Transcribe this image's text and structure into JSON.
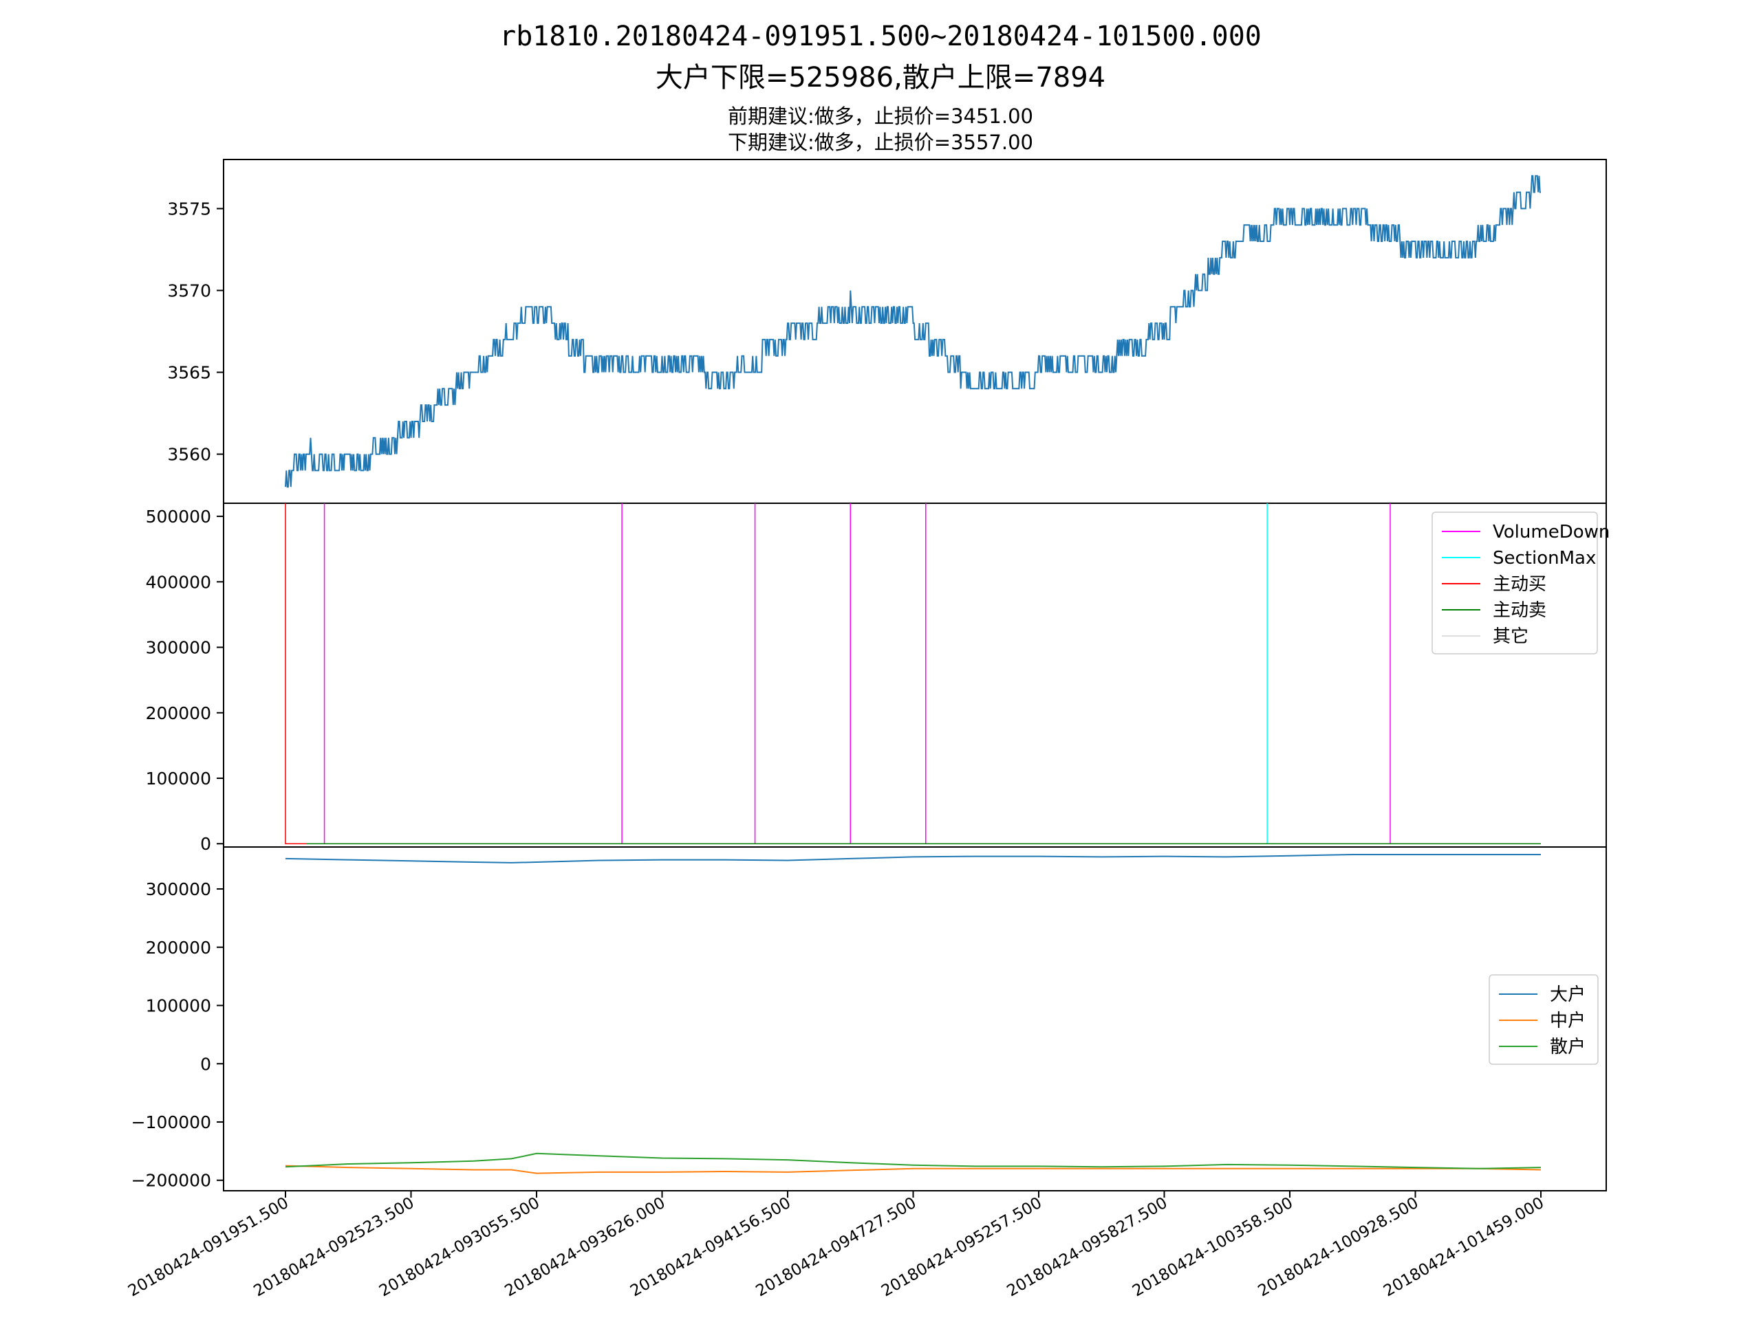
{
  "figure": {
    "title_line1": "rb1810.20180424-091951.500~20180424-101500.000",
    "title_line2": "大户下限=525986,散户上限=7894",
    "subtitle_line1": "前期建议:做多，止损价=3451.00",
    "subtitle_line2": "下期建议:做多，止损价=3557.00"
  },
  "x_ticks": [
    "20180424-091951.500",
    "20180424-092523.500",
    "20180424-093055.500",
    "20180424-093626.000",
    "20180424-094156.500",
    "20180424-094727.500",
    "20180424-095257.500",
    "20180424-095827.500",
    "20180424-100358.500",
    "20180424-100928.500",
    "20180424-101459.000"
  ],
  "chart_data": [
    {
      "type": "line",
      "panel": "price",
      "ylim": [
        3557,
        3578
      ],
      "yticks": [
        3560,
        3565,
        3570,
        3575
      ],
      "color": "#1f77b4",
      "x_index": [
        0,
        0.2,
        0.5,
        1,
        1.5,
        2,
        2.5,
        3,
        3.5,
        4,
        4.5,
        5,
        5.5,
        6,
        6.5,
        7,
        7.5,
        8,
        8.5,
        9,
        9.5,
        10
      ],
      "series": [
        {
          "values_low": [
            3557,
            3559,
            3558,
            3560,
            3563,
            3565,
            3562,
            3564,
            3563,
            3566,
            3567,
            3566,
            3562,
            3564,
            3564,
            3566,
            3570,
            3572,
            3572,
            3571,
            3571,
            3574
          ],
          "values_high": [
            3559,
            3560,
            3559,
            3562,
            3566,
            3572,
            3567,
            3567,
            3565,
            3567,
            3570,
            3569,
            3565,
            3565,
            3566,
            3568,
            3574,
            3576,
            3576,
            3573,
            3574,
            3578
          ]
        }
      ]
    },
    {
      "type": "line",
      "panel": "volume",
      "ylim": [
        -5000,
        520000
      ],
      "yticks": [
        0,
        100000,
        200000,
        300000,
        400000,
        500000
      ],
      "legend_position": "upper right",
      "series": [
        {
          "name": "VolumeDown",
          "color": "#ff00ff",
          "x_index": [
            0.31,
            2.68,
            3.74,
            4.5,
            5.1,
            8.8
          ],
          "values": [
            520000,
            520000,
            520000,
            520000,
            520000,
            520000
          ]
        },
        {
          "name": "SectionMax",
          "color": "#00ffff",
          "x_index": [
            7.82
          ],
          "values": [
            520000
          ]
        },
        {
          "name": "主动买",
          "color": "#ff0000",
          "x_index": [
            0.0
          ],
          "values": [
            525986
          ]
        },
        {
          "name": "主动卖",
          "color": "#008000",
          "values": [
            0
          ]
        },
        {
          "name": "其它",
          "color": "#dddddd",
          "values": [
            0
          ]
        }
      ]
    },
    {
      "type": "line",
      "panel": "accounts",
      "ylim": [
        -218000,
        372000
      ],
      "yticks": [
        -200000,
        -100000,
        0,
        100000,
        200000,
        300000
      ],
      "legend_position": "center right",
      "x_index": [
        0,
        0.5,
        1,
        1.5,
        1.8,
        2,
        2.5,
        3,
        3.5,
        4,
        4.5,
        5,
        5.5,
        6,
        6.5,
        7,
        7.5,
        8,
        8.5,
        9,
        9.5,
        10
      ],
      "series": [
        {
          "name": "大户",
          "color": "#1f77b4",
          "values": [
            352000,
            350000,
            348000,
            346000,
            345000,
            346000,
            349000,
            350000,
            350000,
            349000,
            352000,
            355000,
            356000,
            356000,
            355000,
            356000,
            355000,
            357000,
            359000,
            359000,
            359000,
            359000
          ]
        },
        {
          "name": "中户",
          "color": "#ff7f0e",
          "values": [
            -175000,
            -178000,
            -180000,
            -182000,
            -182000,
            -188000,
            -186000,
            -186000,
            -185000,
            -186000,
            -183000,
            -180000,
            -180000,
            -180000,
            -180000,
            -180000,
            -180000,
            -180000,
            -180000,
            -180000,
            -180000,
            -182000
          ]
        },
        {
          "name": "散户",
          "color": "#2ca02c",
          "values": [
            -177000,
            -172000,
            -170000,
            -167000,
            -163000,
            -154000,
            -158000,
            -162000,
            -163000,
            -165000,
            -170000,
            -174000,
            -176000,
            -176000,
            -177000,
            -176000,
            -173000,
            -174000,
            -176000,
            -178000,
            -180000,
            -178000
          ]
        }
      ]
    }
  ]
}
